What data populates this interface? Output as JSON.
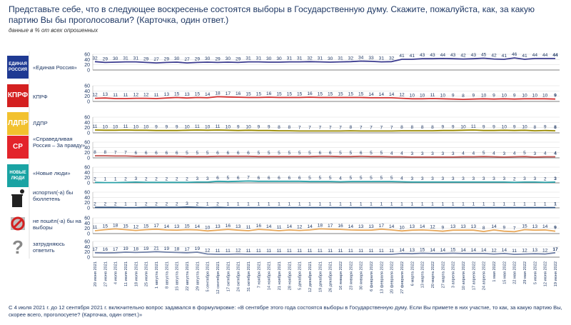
{
  "header": {
    "title": "Представьте себе, что в следующее воскресенье состоятся выборы в Государственную думу. Скажите, пожалуйста, как, за какую партию Вы бы проголосовали? (Карточка, один ответ.)",
    "subtitle": "данные в % от всех опрошенных"
  },
  "footnote": "С 4 июля 2021 г. до 12 сентября 2021 г. включительно вопрос задавался в формулировке: «В сентябре этого года состоятся выборы в Государственную думу. Если Вы примете в них участие, то как, за какую партию Вы, скорее всего, проголосуете? (Карточка, один ответ.)»",
  "party_labels": [
    "«Единая Россия»",
    "КПРФ",
    "ЛДПР",
    "«Справедливая Россия – За правду»",
    "«Новые люди»",
    "испортил(-а) бы бюллетень",
    "не пошёл(-а) бы на выборы",
    "затрудняюсь ответить"
  ],
  "logos": [
    {
      "name": "edinaya-rossiya-logo",
      "text": "ЕДИНАЯ РОССИЯ",
      "bg": "#1f3a93"
    },
    {
      "name": "kprf-logo",
      "text": "КПРФ",
      "bg": "#d42020"
    },
    {
      "name": "ldpr-logo",
      "text": "ЛДПР",
      "bg": "#f2c12e"
    },
    {
      "name": "sr-logo",
      "text": "СР",
      "bg": "#e3242b"
    },
    {
      "name": "novye-lyudi-logo",
      "text": "НОВЫЕ ЛЮДИ",
      "bg": "#1aa3a3"
    },
    {
      "name": "ballot-spoil-icon",
      "text": "",
      "bg": "#ffffff"
    },
    {
      "name": "no-vote-icon",
      "text": "",
      "bg": "#ffffff"
    },
    {
      "name": "question-icon",
      "text": "?",
      "bg": "#ffffff"
    }
  ],
  "chart_data": {
    "type": "line",
    "ylim": [
      0,
      60
    ],
    "y_ticks": [
      "0",
      "20",
      "40",
      "60"
    ],
    "categories": [
      "20 июня 2021",
      "27 июня 2021",
      "4 июля 2021",
      "11 июля 2021",
      "18 июля 2021",
      "25 июля 2021",
      "1 августа 2021",
      "8 августа 2021",
      "15 августа 2021",
      "22 августа 2021",
      "29 августа 2021",
      "5 сентября 2021",
      "12 сентября 2021",
      "17 октября 2021",
      "24 октября 2021",
      "31 октября 2021",
      "7 ноября 2021",
      "14 ноября 2021",
      "21 ноября 2021",
      "28 ноября 2021",
      "5 декабря 2021",
      "12 декабря 2021",
      "19 декабря 2021",
      "26 декабря 2021",
      "16 января 2022",
      "23 января 2022",
      "30 января 2022",
      "6 февраля 2022",
      "13 февраля 2022",
      "20 февраля 2022",
      "27 февраля 2022",
      "6 марта 2022",
      "13 марта 2022",
      "20 марта 2022",
      "27 марта 2022",
      "3 апреля 2022",
      "10 апреля 2022",
      "17 апреля 2022",
      "24 апреля 2022",
      "1 мая 2022",
      "15 мая 2022",
      "22 мая 2022",
      "29 мая 2022",
      "5 июня 2022",
      "12 июня 2022",
      "19 июня 2022"
    ],
    "series": [
      {
        "name": "«Единая Россия»",
        "color": "#3b3b8f",
        "values": [
          32,
          29,
          30,
          31,
          31,
          29,
          27,
          29,
          30,
          27,
          29,
          30,
          29,
          30,
          29,
          31,
          31,
          30,
          30,
          31,
          31,
          32,
          31,
          30,
          31,
          32,
          34,
          33,
          31,
          32,
          41,
          41,
          43,
          43,
          44,
          43,
          42,
          43,
          45,
          42,
          41,
          46,
          41,
          44,
          44,
          44
        ]
      },
      {
        "name": "КПРФ",
        "color": "#d43030",
        "values": [
          12,
          13,
          11,
          11,
          12,
          12,
          11,
          13,
          15,
          13,
          15,
          14,
          18,
          17,
          16,
          15,
          15,
          16,
          15,
          15,
          15,
          16,
          15,
          15,
          15,
          15,
          15,
          14,
          14,
          14,
          12,
          10,
          10,
          11,
          10,
          9,
          8,
          9,
          10,
          9,
          10,
          9,
          10,
          10,
          10,
          9
        ]
      },
      {
        "name": "ЛДПР",
        "color": "#9a8a00",
        "values": [
          11,
          10,
          10,
          11,
          10,
          10,
          9,
          9,
          9,
          10,
          11,
          10,
          11,
          10,
          9,
          10,
          9,
          9,
          8,
          8,
          7,
          7,
          7,
          7,
          7,
          8,
          7,
          7,
          7,
          7,
          8,
          8,
          8,
          8,
          9,
          9,
          10,
          11,
          9,
          9,
          10,
          9,
          10,
          8,
          9,
          8
        ]
      },
      {
        "name": "«Справедливая Россия – За правду»",
        "color": "#c0504d",
        "values": [
          8,
          8,
          7,
          7,
          6,
          6,
          6,
          6,
          6,
          5,
          5,
          5,
          6,
          6,
          6,
          6,
          5,
          5,
          5,
          5,
          5,
          5,
          6,
          6,
          5,
          5,
          6,
          5,
          5,
          4,
          4,
          3,
          3,
          3,
          3,
          3,
          4,
          4,
          5,
          4,
          3,
          4,
          5,
          3,
          4,
          4
        ]
      },
      {
        "name": "«Новые люди»",
        "color": "#2aa1a8",
        "values": [
          2,
          1,
          1,
          2,
          3,
          2,
          2,
          2,
          2,
          2,
          3,
          3,
          6,
          5,
          6,
          7,
          6,
          6,
          6,
          6,
          6,
          5,
          5,
          5,
          4,
          5,
          5,
          5,
          5,
          5,
          4,
          3,
          3,
          3,
          3,
          3,
          3,
          3,
          3,
          3,
          3,
          2,
          3,
          3,
          2,
          3
        ]
      },
      {
        "name": "испортил(-а) бы бюллетень",
        "color": "#2a4d7a",
        "values": [
          2,
          2,
          2,
          1,
          1,
          2,
          2,
          2,
          2,
          3,
          2,
          1,
          2,
          1,
          1,
          1,
          1,
          1,
          1,
          1,
          1,
          1,
          1,
          1,
          1,
          1,
          1,
          1,
          1,
          1,
          1,
          1,
          1,
          1,
          1,
          1,
          1,
          1,
          1,
          1,
          1,
          1,
          1,
          1,
          1,
          1
        ]
      },
      {
        "name": "не пошёл(-а) бы на выборы",
        "color": "#e8a85a",
        "values": [
          11,
          15,
          18,
          15,
          12,
          15,
          17,
          14,
          13,
          15,
          14,
          10,
          13,
          16,
          13,
          11,
          16,
          14,
          11,
          14,
          12,
          14,
          18,
          17,
          16,
          14,
          13,
          13,
          17,
          14,
          10,
          13,
          14,
          12,
          9,
          13,
          13,
          13,
          8,
          14,
          9,
          7,
          15,
          13,
          14,
          9
        ]
      },
      {
        "name": "затрудняюсь ответить",
        "color": "#6f7fa6",
        "values": [
          17,
          16,
          17,
          19,
          18,
          19,
          21,
          19,
          18,
          17,
          19,
          12,
          11,
          11,
          12,
          11,
          11,
          11,
          11,
          11,
          11,
          11,
          11,
          11,
          11,
          11,
          11,
          11,
          11,
          11,
          14,
          13,
          15,
          14,
          14,
          15,
          14,
          14,
          14,
          12,
          14,
          11,
          12,
          13,
          12,
          17
        ]
      }
    ]
  }
}
